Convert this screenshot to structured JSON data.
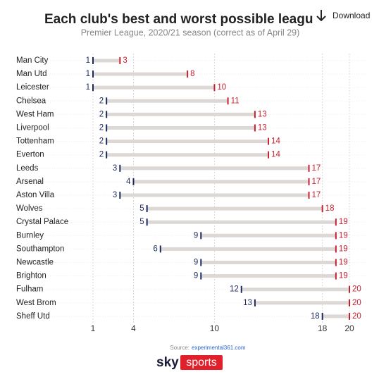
{
  "chart_data": {
    "type": "dumbbell",
    "title": "Each club's best and worst possible league positions",
    "subtitle": "Premier League, 2020/21 season (correct as of April 29)",
    "categories": [
      "Man City",
      "Man Utd",
      "Leicester",
      "Chelsea",
      "West Ham",
      "Liverpool",
      "Tottenham",
      "Everton",
      "Leeds",
      "Arsenal",
      "Aston Villa",
      "Wolves",
      "Crystal Palace",
      "Burnley",
      "Southampton",
      "Newcastle",
      "Brighton",
      "Fulham",
      "West Brom",
      "Sheff Utd"
    ],
    "best": [
      1,
      1,
      1,
      2,
      2,
      2,
      2,
      2,
      3,
      4,
      3,
      5,
      5,
      9,
      6,
      9,
      9,
      12,
      13,
      18
    ],
    "worst": [
      3,
      8,
      10,
      11,
      13,
      13,
      14,
      14,
      17,
      17,
      17,
      18,
      19,
      19,
      19,
      19,
      19,
      20,
      20,
      20
    ],
    "best_color": "#1b2a5e",
    "worst_color": "#c8202f",
    "bar_color": "#dcd8d5",
    "xlim": [
      1,
      20
    ],
    "xticks": [
      1,
      4,
      10,
      18,
      20
    ],
    "grid": true,
    "source_prefix": "Source:",
    "source": "experimental361.com",
    "logo": {
      "sky": "sky",
      "sports": "sports"
    },
    "download": "Download"
  }
}
